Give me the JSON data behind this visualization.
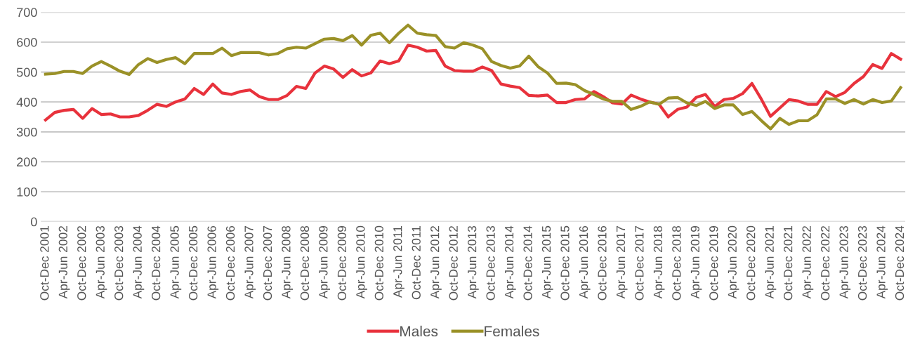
{
  "chart_data": {
    "type": "line",
    "categories": [
      "Oct-Dec 2001",
      null,
      "Apr-Jun 2002",
      null,
      "Oct-Dec 2002",
      null,
      "Apr-Jun 2003",
      null,
      "Oct-Dec 2003",
      null,
      "Apr-Jun 2004",
      null,
      "Oct-Dec 2004",
      null,
      "Apr-Jun 2005",
      null,
      "Oct-Dec 2005",
      null,
      "Apr-Jun 2006",
      null,
      "Oct-Dec 2006",
      null,
      "Apr-Jun 2007",
      null,
      "Oct-Dec 2007",
      null,
      "Apr-Jun 2008",
      null,
      "Oct-Dec 2008",
      null,
      "Apr-Jun 2009",
      null,
      "Oct-Dec 2009",
      null,
      "Apr-Jun 2010",
      null,
      "Oct-Dec 2010",
      null,
      "Apr-Jun 2011",
      null,
      "Oct-Dec 2011",
      null,
      "Apr-Jun 2012",
      null,
      "Oct-Dec 2012",
      null,
      "Apr-Jun 2013",
      null,
      "Oct-Dec 2013",
      null,
      "Apr-Jun 2014",
      null,
      "Oct-Dec 2014",
      null,
      "Apr-Jun 2015",
      null,
      "Oct-Dec 2015",
      null,
      "Apr-Jun 2016",
      null,
      "Oct-Dec 2016",
      null,
      "Apr-Jun 2017",
      null,
      "Oct-Dec 2017",
      null,
      "Apr-Jun 2018",
      null,
      "Oct-Dec 2018",
      null,
      "Apr-Jun 2019",
      null,
      "Oct-Dec 2019",
      null,
      "Apr-Jun 2020",
      null,
      "Oct-Dec 2020",
      null,
      "Apr-Jun 2021",
      null,
      "Oct-Dec 2021",
      null,
      "Apr-Jun 2022",
      null,
      "Oct-Dec 2022",
      null,
      "Apr-Jun 2023",
      null,
      "Oct-Dec 2023",
      null,
      "Apr-Jun 2024",
      null,
      "Oct-Dec 2024"
    ],
    "series": [
      {
        "name": "Males",
        "color": "#e8323c",
        "values": [
          340,
          365,
          372,
          375,
          345,
          378,
          358,
          360,
          350,
          350,
          355,
          372,
          392,
          385,
          400,
          410,
          445,
          425,
          460,
          430,
          425,
          435,
          440,
          418,
          408,
          408,
          422,
          452,
          445,
          497,
          520,
          510,
          482,
          508,
          487,
          497,
          537,
          528,
          537,
          590,
          583,
          570,
          572,
          520,
          505,
          503,
          503,
          517,
          505,
          460,
          453,
          448,
          422,
          420,
          423,
          398,
          398,
          408,
          410,
          435,
          418,
          397,
          393,
          423,
          410,
          400,
          393,
          350,
          375,
          383,
          415,
          425,
          385,
          408,
          412,
          428,
          462,
          410,
          352,
          380,
          408,
          403,
          392,
          392,
          435,
          418,
          432,
          462,
          485,
          525,
          512,
          562,
          543
        ]
      },
      {
        "name": "Females",
        "color": "#9a9127",
        "values": [
          493,
          495,
          502,
          502,
          495,
          520,
          535,
          520,
          503,
          492,
          525,
          545,
          532,
          542,
          548,
          528,
          562,
          562,
          562,
          580,
          555,
          565,
          565,
          565,
          557,
          562,
          578,
          583,
          580,
          595,
          610,
          612,
          605,
          622,
          590,
          623,
          630,
          598,
          630,
          657,
          630,
          625,
          622,
          585,
          580,
          598,
          590,
          578,
          535,
          522,
          513,
          520,
          553,
          518,
          497,
          462,
          463,
          458,
          438,
          425,
          410,
          402,
          402,
          375,
          385,
          400,
          392,
          413,
          415,
          397,
          388,
          402,
          378,
          390,
          390,
          358,
          368,
          338,
          310,
          345,
          325,
          337,
          337,
          357,
          410,
          410,
          395,
          408,
          393,
          408,
          398,
          403,
          448
        ]
      }
    ],
    "ylim": [
      0,
      700
    ],
    "yticks": [
      0,
      100,
      200,
      300,
      400,
      500,
      600,
      700
    ],
    "grid": "y",
    "legend": "bottom",
    "marker": "none",
    "line_style": "solid"
  }
}
